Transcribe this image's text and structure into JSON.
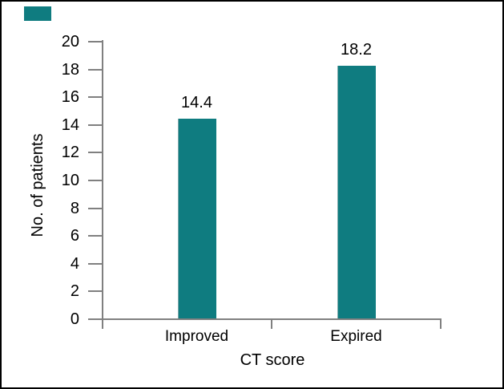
{
  "chart_data": {
    "type": "bar",
    "title": "",
    "categories": [
      "Improved",
      "Expired"
    ],
    "values": [
      14.4,
      18.2
    ],
    "value_labels": [
      "14.4",
      "18.2"
    ],
    "xlabel": "CT score",
    "ylabel": "No. of patients",
    "ylim": [
      0,
      20
    ],
    "yticks": [
      0,
      2,
      4,
      6,
      8,
      10,
      12,
      14,
      16,
      18,
      20
    ],
    "grid": false,
    "legend_position": "none",
    "bar_color": "#0F7C80",
    "axis_color": "#808080",
    "text_color": "#000000",
    "background_color": "#FFFFFF"
  },
  "decorations": {
    "corner_swatch_color": "#0F7C80"
  }
}
